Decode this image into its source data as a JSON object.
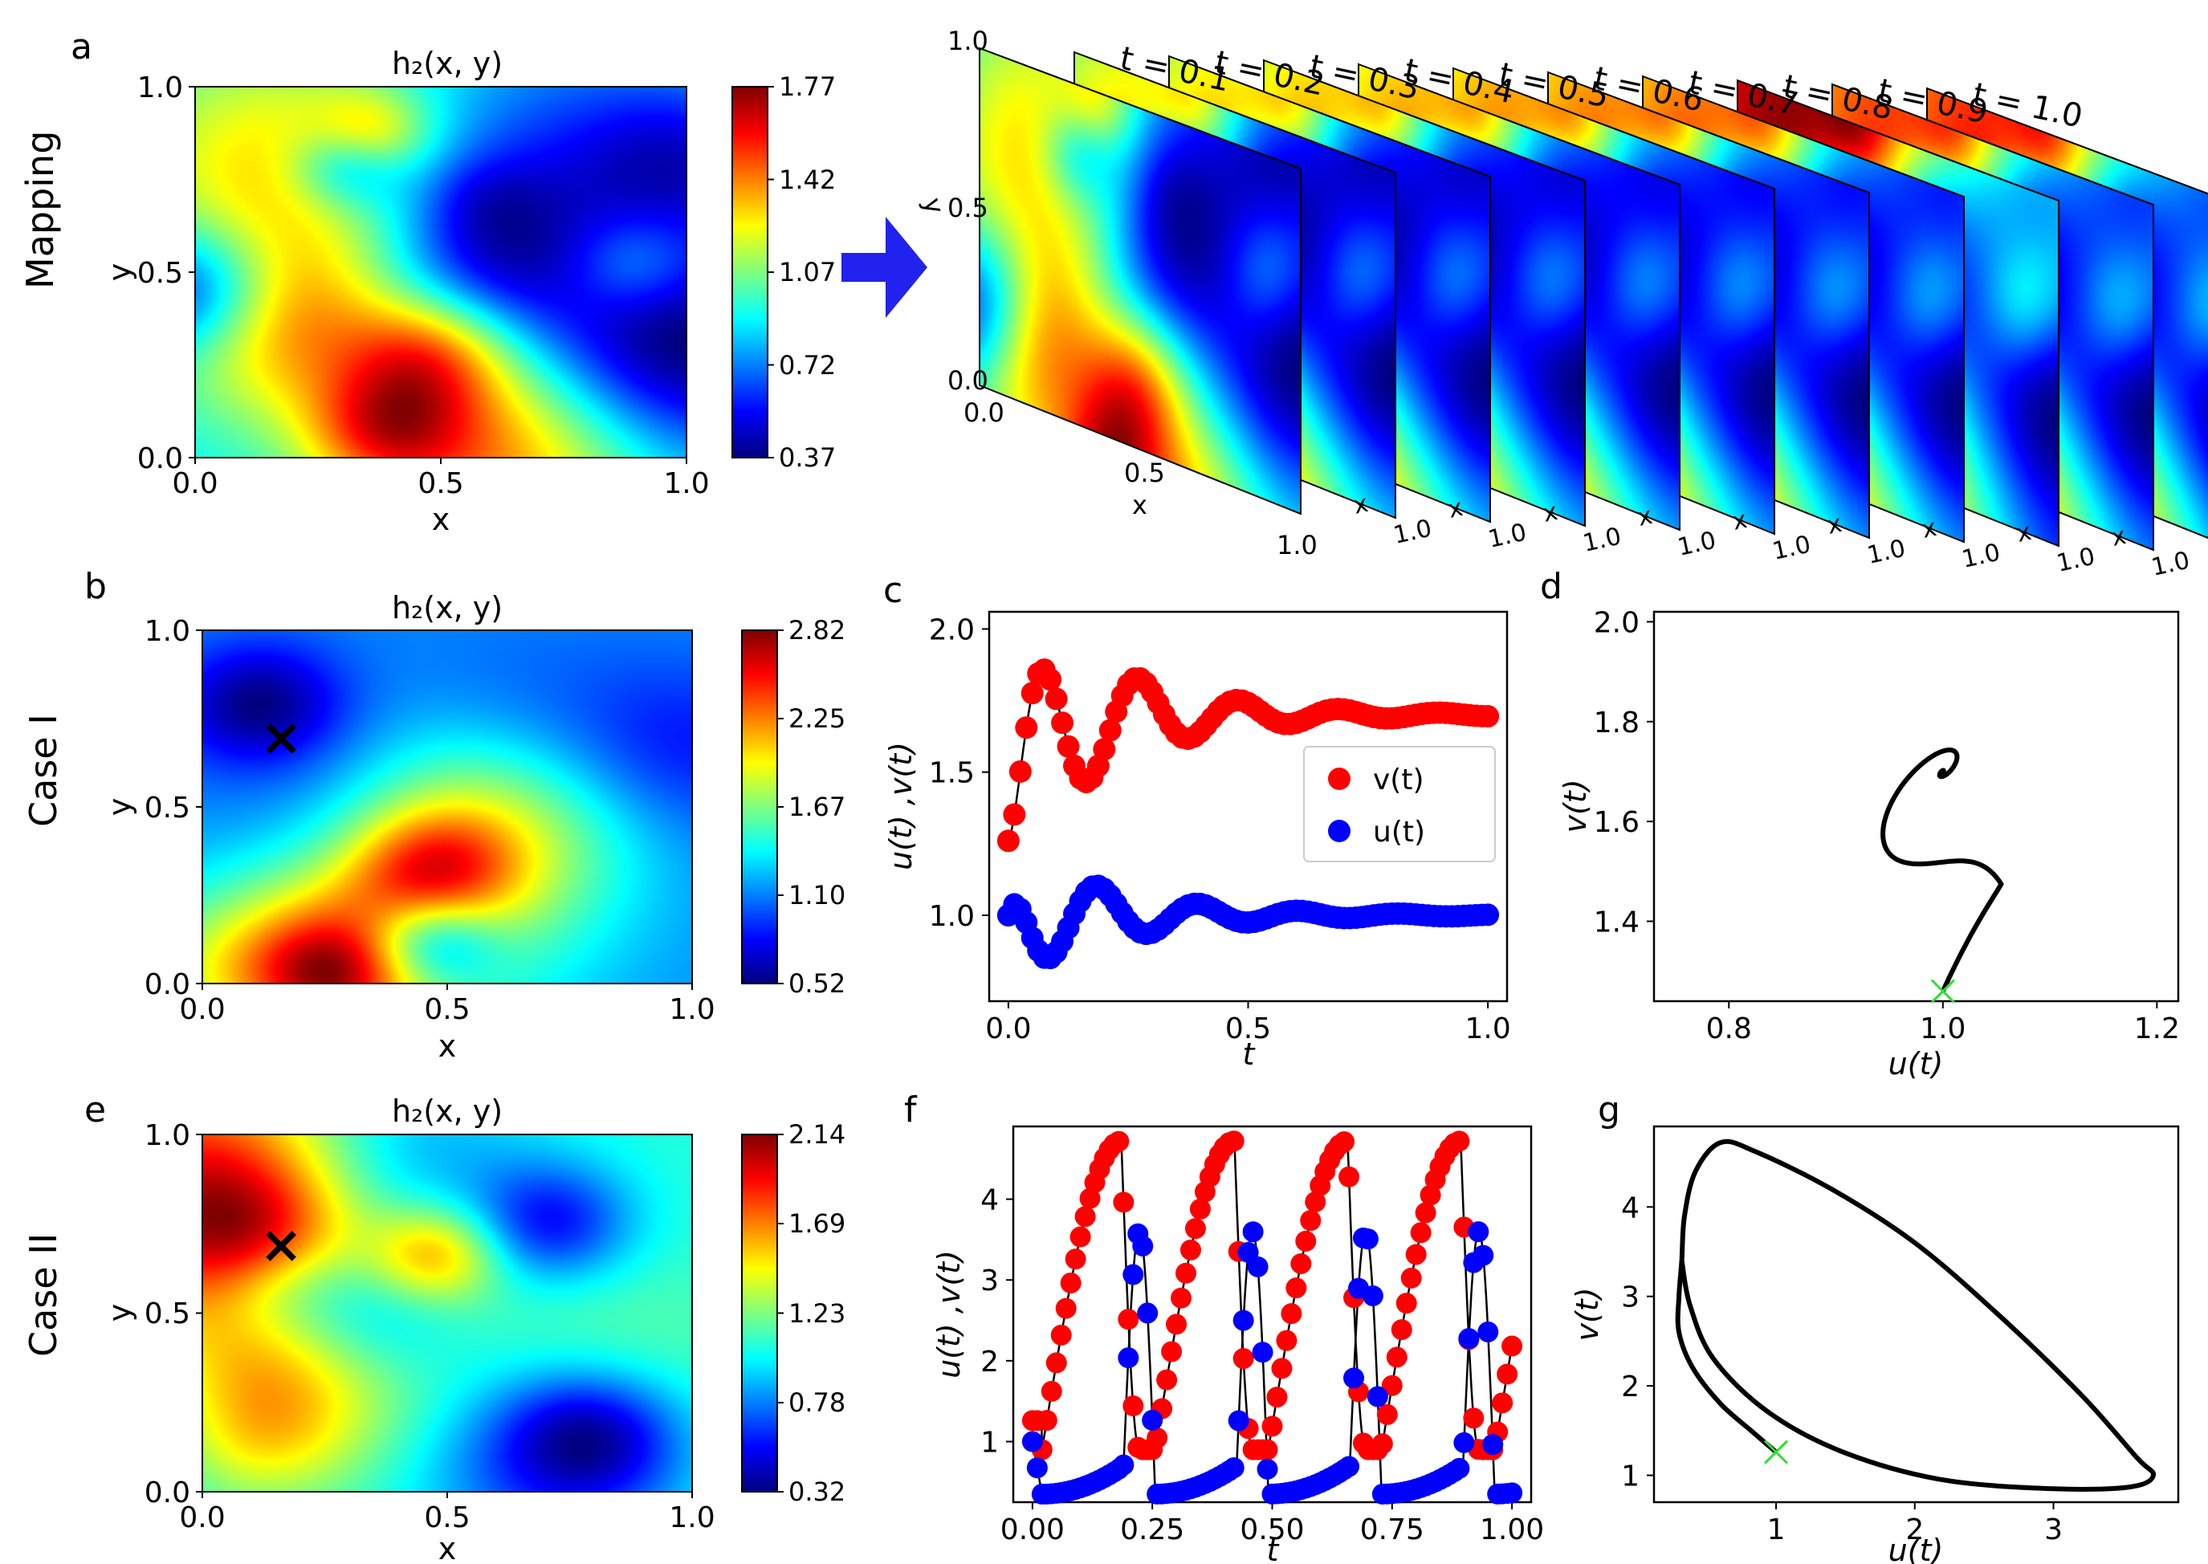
{
  "labels": {
    "panel_a": "a",
    "panel_b": "b",
    "panel_c": "c",
    "panel_d": "d",
    "panel_e": "e",
    "panel_f": "f",
    "panel_g": "g",
    "row_mapping": "Mapping",
    "row_case1": "Case I",
    "row_case2": "Case II"
  },
  "colors": {
    "v_series": "#ff0000",
    "u_series": "#0000ff",
    "curve": "#000000",
    "start_marker": "#33dd33",
    "arrow": "#2222ee"
  },
  "chart_data": [
    {
      "id": "a",
      "type": "heatmap",
      "title": "h₂(x, y)",
      "xlabel": "x",
      "ylabel": "y",
      "xlim": [
        0,
        1
      ],
      "ylim": [
        0,
        1
      ],
      "xticks": [
        "0.0",
        "0.5",
        "1.0"
      ],
      "yticks": [
        "0.0",
        "0.5",
        "1.0"
      ],
      "colorbar": {
        "min": 0.37,
        "max": 1.77,
        "ticks": [
          "1.77",
          "1.42",
          "1.07",
          "0.72",
          "0.37"
        ]
      },
      "seed": 11
    },
    {
      "id": "a-stack",
      "type": "heatmap",
      "time_labels": [
        "t = 0.1",
        "t = 0.2",
        "t = 0.3",
        "t = 0.4",
        "t = 0.5",
        "t = 0.6",
        "t = 0.7",
        "t = 0.8",
        "t = 0.9",
        "t = 1.0"
      ],
      "panel_ticks": {
        "y_axis": "y",
        "y_top": "1.0",
        "y_mid": "0.5",
        "y_bottom": "0.0",
        "x_start": "0.0",
        "x_mid": "0.5",
        "x_axis": "x",
        "x_end": "1.0"
      }
    },
    {
      "id": "b",
      "type": "heatmap",
      "title": "h₂(x, y)",
      "xlabel": "x",
      "ylabel": "y",
      "xlim": [
        0,
        1
      ],
      "ylim": [
        0,
        1
      ],
      "xticks": [
        "0.0",
        "0.5",
        "1.0"
      ],
      "yticks": [
        "0.0",
        "0.5",
        "1.0"
      ],
      "colorbar": {
        "min": 0.52,
        "max": 2.82,
        "ticks": [
          "2.82",
          "2.25",
          "1.67",
          "1.10",
          "0.52"
        ]
      },
      "marker": {
        "x": 0.16,
        "y": 0.68,
        "symbol": "×"
      },
      "seed": 23
    },
    {
      "id": "c",
      "type": "scatter",
      "xlabel": "t",
      "ylabel": "u(t) ,v(t)",
      "xlim": [
        -0.04,
        1.04
      ],
      "ylim": [
        0.7,
        2.06
      ],
      "xticks": [
        0.0,
        0.5,
        1.0
      ],
      "xtick_labels": [
        "0.0",
        "0.5",
        "1.0"
      ],
      "yticks": [
        1.0,
        1.5,
        2.0
      ],
      "ytick_labels": [
        "1.0",
        "1.5",
        "2.0"
      ],
      "legend": [
        "v(t)",
        "u(t)"
      ],
      "series": [
        {
          "name": "v(t)",
          "model": "damped",
          "y0": 1.26,
          "eq": 1.7,
          "amp": 0.45,
          "omega": 30,
          "damp": 4.5,
          "phase": -0.35,
          "t_max": 1.0,
          "samples": 80
        },
        {
          "name": "u(t)",
          "model": "damped",
          "y0": 1.0,
          "eq": 1.0,
          "amp": 0.24,
          "omega": 30,
          "damp": 4.5,
          "phase": 2.2,
          "t_max": 1.0,
          "samples": 80
        }
      ]
    },
    {
      "id": "d",
      "type": "line",
      "xlabel": "u(t)",
      "ylabel": "v(t)",
      "xlim": [
        0.73,
        1.22
      ],
      "ylim": [
        1.24,
        2.02
      ],
      "xticks": [
        0.8,
        1.0,
        1.2
      ],
      "xtick_labels": [
        "0.8",
        "1.0",
        "1.2"
      ],
      "yticks": [
        1.4,
        1.6,
        1.8,
        2.0
      ],
      "ytick_labels": [
        "1.4",
        "1.6",
        "1.8",
        "2.0"
      ],
      "start": [
        1.0,
        1.26
      ],
      "trajectory": {
        "model": "spiral",
        "center": [
          1.0,
          1.7
        ],
        "ru": 0.14,
        "rv": 0.31,
        "u_phase": 2.5,
        "v_phase": 3.35,
        "omega": 30,
        "damp": 4.6,
        "t_max": 2.0
      }
    },
    {
      "id": "e",
      "type": "heatmap",
      "title": "h₂(x, y)",
      "xlabel": "x",
      "ylabel": "y",
      "xlim": [
        0,
        1
      ],
      "ylim": [
        0,
        1
      ],
      "xticks": [
        "0.0",
        "0.5",
        "1.0"
      ],
      "yticks": [
        "0.0",
        "0.5",
        "1.0"
      ],
      "colorbar": {
        "min": 0.32,
        "max": 2.14,
        "ticks": [
          "2.14",
          "1.69",
          "1.23",
          "0.78",
          "0.32"
        ]
      },
      "marker": {
        "x": 0.16,
        "y": 0.68,
        "symbol": "×"
      },
      "seed": 37
    },
    {
      "id": "f",
      "type": "scatter",
      "xlabel": "t",
      "ylabel": "u(t) ,v(t)",
      "xlim": [
        -0.04,
        1.04
      ],
      "ylim": [
        0.25,
        4.9
      ],
      "xticks": [
        0.0,
        0.25,
        0.5,
        0.75,
        1.0
      ],
      "xtick_labels": [
        "0.00",
        "0.25",
        "0.50",
        "0.75",
        "1.00"
      ],
      "yticks": [
        1,
        2,
        3,
        4
      ],
      "ytick_labels": [
        "1",
        "2",
        "3",
        "4"
      ],
      "period": 0.236,
      "series": [
        {
          "name": "v(t)",
          "model": "relaxation",
          "y0": 1.26,
          "low": 0.9,
          "high": 4.72,
          "rise_end": 0.18,
          "t_max": 1.0,
          "samples": 100
        },
        {
          "name": "u(t)",
          "model": "relaxation",
          "y0": 1.0,
          "low": 0.35,
          "high": 3.6,
          "rise_end": 0.18,
          "t_max": 1.0,
          "samples": 100
        }
      ]
    },
    {
      "id": "g",
      "type": "line",
      "xlabel": "u(t)",
      "ylabel": "v(t)",
      "xlim": [
        0.12,
        3.9
      ],
      "ylim": [
        0.7,
        4.9
      ],
      "xticks": [
        1,
        2,
        3
      ],
      "xtick_labels": [
        "1",
        "2",
        "3"
      ],
      "yticks": [
        1,
        2,
        3,
        4
      ],
      "ytick_labels": [
        "1",
        "2",
        "3",
        "4"
      ],
      "start": [
        1.0,
        1.26
      ],
      "transient": [
        [
          1.0,
          1.26
        ],
        [
          0.82,
          1.5
        ],
        [
          0.6,
          1.8
        ],
        [
          0.4,
          2.2
        ],
        [
          0.3,
          2.6
        ],
        [
          0.3,
          3.0
        ],
        [
          0.32,
          3.4
        ]
      ],
      "cycle": [
        [
          0.32,
          3.4
        ],
        [
          0.34,
          3.9
        ],
        [
          0.42,
          4.4
        ],
        [
          0.6,
          4.72
        ],
        [
          0.85,
          4.62
        ],
        [
          1.4,
          4.2
        ],
        [
          2.0,
          3.6
        ],
        [
          2.6,
          2.8
        ],
        [
          3.2,
          1.9
        ],
        [
          3.6,
          1.2
        ],
        [
          3.72,
          1.0
        ],
        [
          3.55,
          0.87
        ],
        [
          3.0,
          0.85
        ],
        [
          2.2,
          0.95
        ],
        [
          1.5,
          1.25
        ],
        [
          0.95,
          1.7
        ],
        [
          0.55,
          2.3
        ],
        [
          0.38,
          2.9
        ],
        [
          0.32,
          3.4
        ]
      ]
    }
  ]
}
